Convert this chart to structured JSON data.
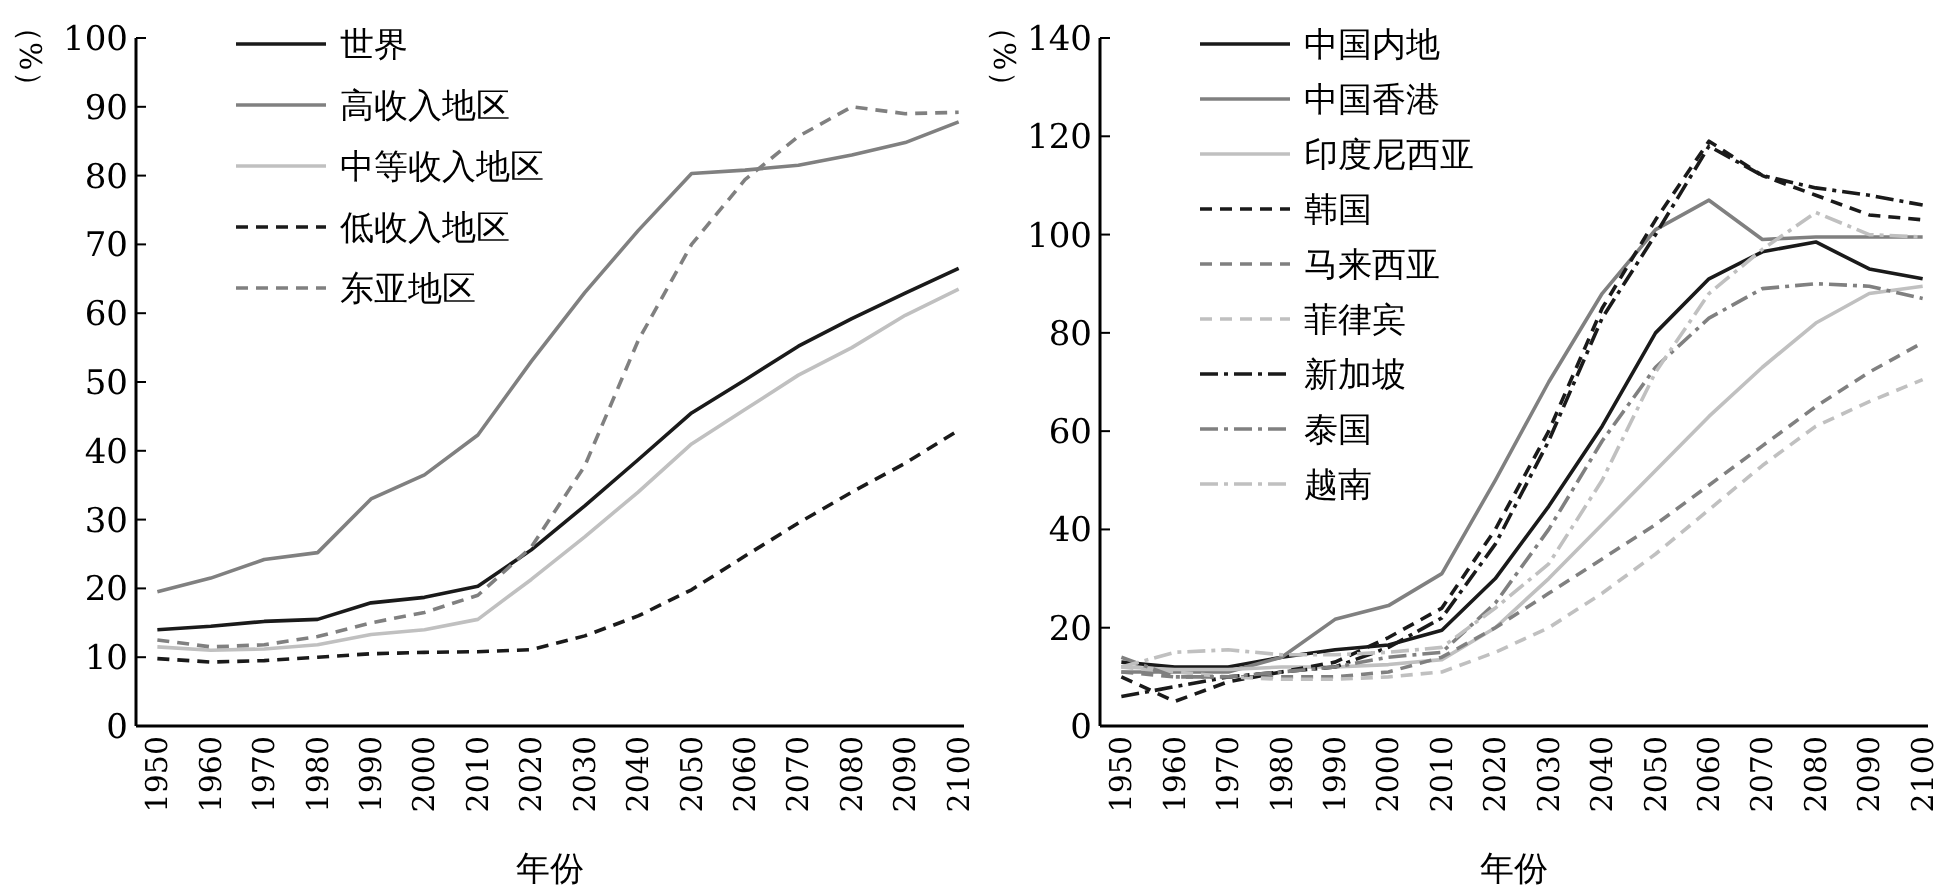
{
  "chart_data": [
    {
      "type": "line",
      "ylabel": "（%）",
      "xlabel": "年份",
      "xlim": [
        1946,
        2101
      ],
      "ylim": [
        0,
        100
      ],
      "xticks": [
        1950,
        1960,
        1970,
        1980,
        1990,
        2000,
        2010,
        2020,
        2030,
        2040,
        2050,
        2060,
        2070,
        2080,
        2090,
        2100
      ],
      "yticks": [
        0,
        10,
        20,
        30,
        40,
        50,
        60,
        70,
        80,
        90,
        100
      ],
      "legend": "top left",
      "grid": false,
      "x": [
        1950,
        1960,
        1970,
        1980,
        1990,
        2000,
        2010,
        2020,
        2030,
        2040,
        2050,
        2060,
        2070,
        2080,
        2090,
        2100
      ],
      "series": [
        {
          "name": "世界",
          "color": "#1a1a1a",
          "line_style": "solid",
          "values": [
            14,
            14.5,
            15.2,
            15.5,
            17.9,
            18.7,
            20.3,
            25.6,
            32,
            38.7,
            45.5,
            50.3,
            55.2,
            59.2,
            62.9,
            66.5
          ]
        },
        {
          "name": "高收入地区",
          "color": "#808080",
          "line_style": "solid",
          "values": [
            19.5,
            21.5,
            24.2,
            25.2,
            33,
            36.5,
            42.3,
            53,
            63,
            72,
            80.3,
            80.8,
            81.5,
            83,
            84.8,
            87.8
          ]
        },
        {
          "name": "中等收入地区",
          "color": "#c0c0c0",
          "line_style": "solid",
          "values": [
            11.5,
            11,
            11.2,
            11.8,
            13.3,
            14,
            15.5,
            21.3,
            27.5,
            34,
            41,
            46,
            51,
            55,
            59.7,
            63.5
          ]
        },
        {
          "name": "低收入地区",
          "color": "#1a1a1a",
          "line_style": "dashed",
          "values": [
            9.8,
            9.3,
            9.5,
            10,
            10.5,
            10.7,
            10.8,
            11.1,
            13.1,
            16,
            19.8,
            24.7,
            29.5,
            34,
            38.2,
            43
          ]
        },
        {
          "name": "东亚地区",
          "color": "#808080",
          "line_style": "dashed",
          "values": [
            12.5,
            11.5,
            11.8,
            13,
            15,
            16.5,
            19,
            26,
            37.8,
            56,
            70,
            79.4,
            85.7,
            90,
            89,
            89.2
          ]
        }
      ]
    },
    {
      "type": "line",
      "ylabel": "（%）",
      "xlabel": "年份",
      "xlim": [
        1946,
        2101
      ],
      "ylim": [
        0,
        140
      ],
      "xticks": [
        1950,
        1960,
        1970,
        1980,
        1990,
        2000,
        2010,
        2020,
        2030,
        2040,
        2050,
        2060,
        2070,
        2080,
        2090,
        2100
      ],
      "yticks": [
        0,
        20,
        40,
        60,
        80,
        100,
        120,
        140
      ],
      "legend": "top left",
      "grid": false,
      "x": [
        1950,
        1960,
        1970,
        1980,
        1990,
        2000,
        2010,
        2020,
        2030,
        2040,
        2050,
        2060,
        2070,
        2080,
        2090,
        2100
      ],
      "series": [
        {
          "name": "中国内地",
          "color": "#1a1a1a",
          "line_style": "solid",
          "values": [
            13,
            12,
            12,
            14,
            15.5,
            16.5,
            19.5,
            30,
            44.7,
            61,
            80,
            91,
            96.5,
            98.5,
            93,
            91
          ]
        },
        {
          "name": "中国香港",
          "color": "#808080",
          "line_style": "solid",
          "values": [
            11,
            11,
            11,
            14,
            21.7,
            24.5,
            31,
            50,
            70,
            88,
            101,
            107,
            99,
            99.5,
            99.5,
            99.5
          ]
        },
        {
          "name": "印度尼西亚",
          "color": "#c0c0c0",
          "line_style": "solid",
          "values": [
            12,
            11.5,
            11.5,
            12,
            12,
            12.5,
            13.5,
            20,
            30,
            41,
            52,
            63,
            73,
            82,
            88,
            89.5
          ]
        },
        {
          "name": "韩国",
          "color": "#1a1a1a",
          "line_style": "dashed",
          "values": [
            10,
            5,
            9,
            11,
            13,
            18,
            24,
            40,
            60,
            85,
            103,
            119,
            112,
            108,
            104,
            103
          ]
        },
        {
          "name": "马来西亚",
          "color": "#808080",
          "line_style": "dashed",
          "values": [
            11,
            10,
            10,
            10,
            10,
            11,
            14,
            20,
            27,
            34,
            41,
            49,
            57,
            65,
            72,
            78
          ]
        },
        {
          "name": "菲律宾",
          "color": "#c0c0c0",
          "line_style": "dashed",
          "values": [
            12,
            11,
            10,
            9.5,
            9.5,
            10,
            11,
            15,
            20,
            27,
            35,
            44,
            53,
            61,
            66,
            70.5
          ]
        },
        {
          "name": "新加坡",
          "color": "#1a1a1a",
          "line_style": "dashdot",
          "values": [
            6,
            8,
            10,
            11,
            12,
            16,
            22,
            37,
            58,
            83,
            100,
            118,
            112,
            109.5,
            108,
            106
          ]
        },
        {
          "name": "泰国",
          "color": "#808080",
          "line_style": "dashdot",
          "values": [
            14,
            10,
            10,
            11,
            12,
            14,
            15,
            25,
            40,
            58,
            73,
            83,
            89,
            90,
            89.5,
            87
          ]
        },
        {
          "name": "越南",
          "color": "#c0c0c0",
          "line_style": "dashdot",
          "values": [
            12,
            15,
            15.5,
            14.5,
            14.5,
            15,
            16,
            24,
            33,
            50,
            72,
            88,
            97,
            104.5,
            100,
            99.5
          ]
        }
      ]
    }
  ]
}
